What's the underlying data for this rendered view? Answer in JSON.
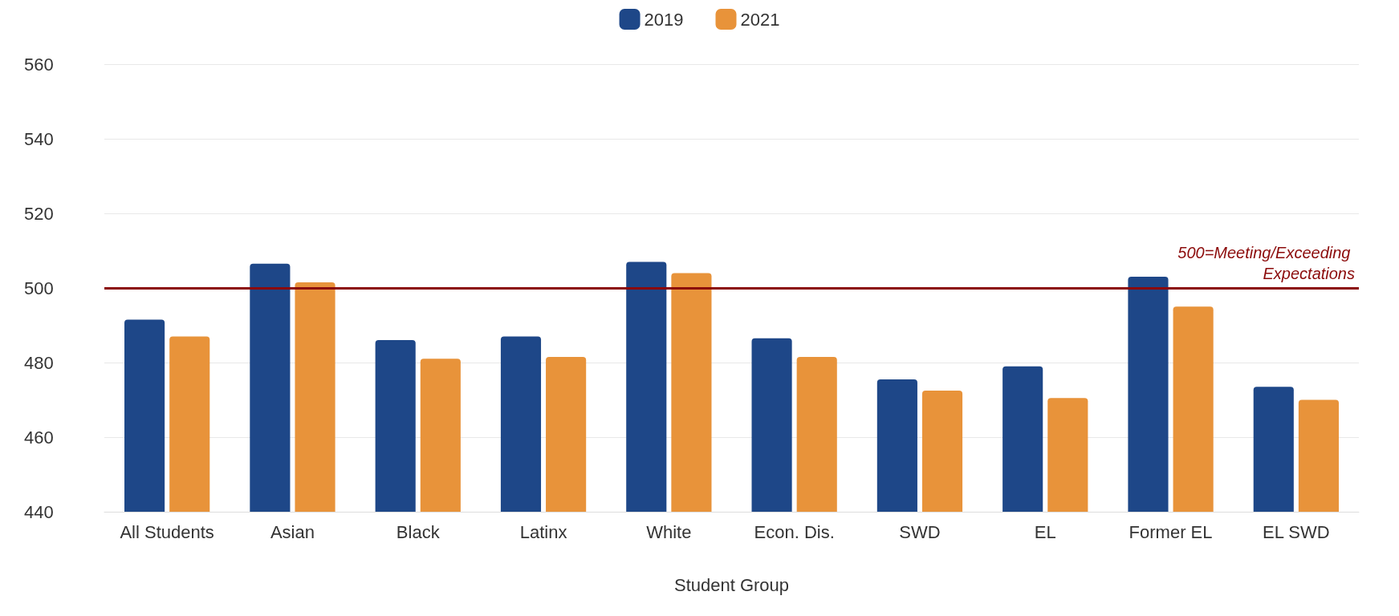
{
  "chart_data": {
    "type": "bar",
    "xlabel": "Student Group",
    "categories": [
      "All Students",
      "Asian",
      "Black",
      "Latinx",
      "White",
      "Econ. Dis.",
      "SWD",
      "EL",
      "Former EL",
      "EL SWD"
    ],
    "series": [
      {
        "name": "2019",
        "color": "#1e4788",
        "values": [
          491.5,
          506.5,
          486,
          487,
          507,
          486.5,
          475.5,
          479,
          503,
          473.5
        ]
      },
      {
        "name": "2021",
        "color": "#e8933a",
        "values": [
          487,
          501.5,
          481,
          481.5,
          504,
          481.5,
          472.5,
          470.5,
          495,
          470
        ]
      }
    ],
    "ylim": [
      440,
      560
    ],
    "yticks": [
      440,
      460,
      480,
      500,
      520,
      540,
      560
    ],
    "grid": "y",
    "legend": "top",
    "ref_lines": [
      {
        "axis": "y",
        "value": 500,
        "label": "500=Meeting/Exceeding Expectations",
        "color": "#8b0a0a",
        "line_style": "solid"
      }
    ]
  }
}
